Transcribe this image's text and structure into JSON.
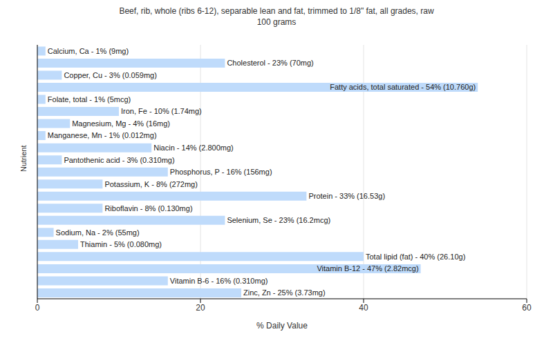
{
  "chart_data": {
    "type": "bar",
    "title": "Beef, rib, whole (ribs 6-12), separable lean and fat, trimmed to 1/8\" fat, all grades, raw",
    "subtitle": "100 grams",
    "xlabel": "% Daily Value",
    "ylabel": "Nutrient",
    "orientation": "horizontal",
    "categories": [
      "Calcium, Ca",
      "Cholesterol",
      "Copper, Cu",
      "Fatty acids, total saturated",
      "Folate, total",
      "Iron, Fe",
      "Magnesium, Mg",
      "Manganese, Mn",
      "Niacin",
      "Pantothenic acid",
      "Phosphorus, P",
      "Potassium, K",
      "Protein",
      "Riboflavin",
      "Selenium, Se",
      "Sodium, Na",
      "Thiamin",
      "Total lipid (fat)",
      "Vitamin B-12",
      "Vitamin B-6",
      "Zinc, Zn"
    ],
    "values": [
      1,
      23,
      3,
      54,
      1,
      10,
      4,
      1,
      14,
      3,
      16,
      8,
      33,
      8,
      23,
      2,
      5,
      40,
      47,
      16,
      25
    ],
    "value_labels": [
      "Calcium, Ca - 1% (9mg)",
      "Cholesterol - 23% (70mg)",
      "Copper, Cu - 3% (0.059mg)",
      "Fatty acids, total saturated - 54% (10.760g)",
      "Folate, total - 1% (5mcg)",
      "Iron, Fe - 10% (1.74mg)",
      "Magnesium, Mg - 4% (16mg)",
      "Manganese, Mn - 1% (0.012mg)",
      "Niacin - 14% (2.800mg)",
      "Pantothenic acid - 3% (0.310mg)",
      "Phosphorus, P - 16% (156mg)",
      "Potassium, K - 8% (272mg)",
      "Protein - 33% (16.53g)",
      "Riboflavin - 8% (0.130mg)",
      "Selenium, Se - 23% (16.2mcg)",
      "Sodium, Na - 2% (55mg)",
      "Thiamin - 5% (0.080mg)",
      "Total lipid (fat) - 40% (26.10g)",
      "Vitamin B-12 - 47% (2.82mcg)",
      "Vitamin B-6 - 16% (0.310mg)",
      "Zinc, Zn - 25% (3.73mg)"
    ],
    "color": "#bfdbfb",
    "xlim": [
      0,
      60
    ],
    "xticks": [
      0,
      20,
      40,
      60
    ],
    "grid": true,
    "data_labels": true,
    "tick_labels": "x"
  }
}
